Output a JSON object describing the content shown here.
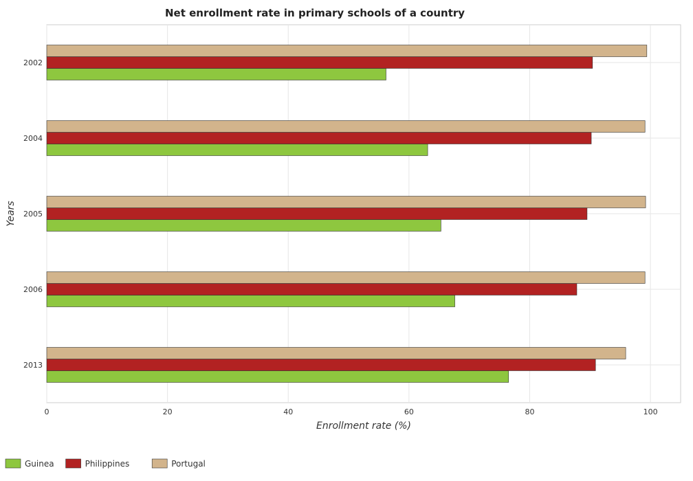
{
  "chart_data": {
    "type": "bar",
    "orientation": "horizontal",
    "title": "Net enrollment rate in primary schools of a country",
    "xlabel": "Enrollment rate (%)",
    "ylabel": "Years",
    "categories": [
      "2002",
      "2004",
      "2005",
      "2006",
      "2013"
    ],
    "xlim": [
      0,
      105
    ],
    "xticks": [
      0,
      20,
      40,
      60,
      80,
      100
    ],
    "grid": true,
    "legend_position": "bottom-left",
    "series": [
      {
        "name": "Guinea",
        "color": "#8ec73f",
        "values": [
          56.2,
          63.1,
          65.3,
          67.6,
          76.5
        ]
      },
      {
        "name": "Philippines",
        "color": "#b22222",
        "values": [
          90.4,
          90.2,
          89.5,
          87.8,
          90.9
        ]
      },
      {
        "name": "Portugal",
        "color": "#d2b48c",
        "values": [
          99.4,
          99.1,
          99.2,
          99.1,
          95.9
        ]
      }
    ]
  }
}
